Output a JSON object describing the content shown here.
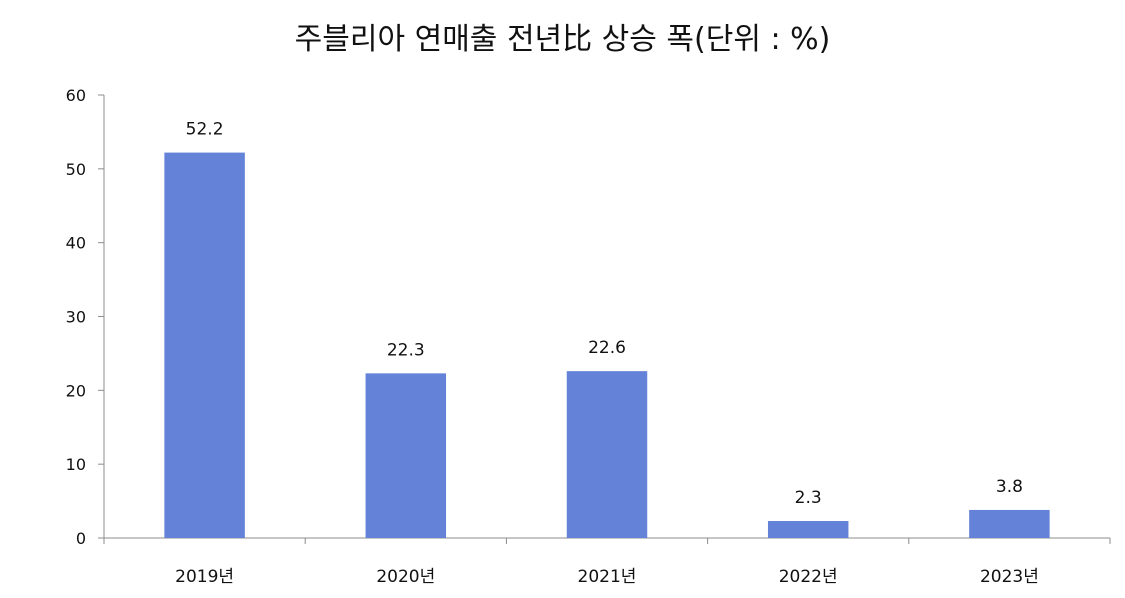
{
  "chart_data": {
    "type": "bar",
    "title": "주블리아 연매출 전년比 상승 폭(단위 : %)",
    "categories": [
      "2019년",
      "2020년",
      "2021년",
      "2022년",
      "2023년"
    ],
    "values": [
      52.2,
      22.3,
      22.6,
      2.3,
      3.8
    ],
    "value_labels": [
      "52.2",
      "22.3",
      "22.6",
      "2.3",
      "3.8"
    ],
    "xlabel": "",
    "ylabel": "",
    "ylim": [
      0,
      60
    ],
    "yticks": [
      0,
      10,
      20,
      30,
      40,
      50,
      60
    ],
    "grid": false,
    "legend": "none",
    "bar_color": "#6483d8",
    "axis_color": "#8c8c8c"
  }
}
